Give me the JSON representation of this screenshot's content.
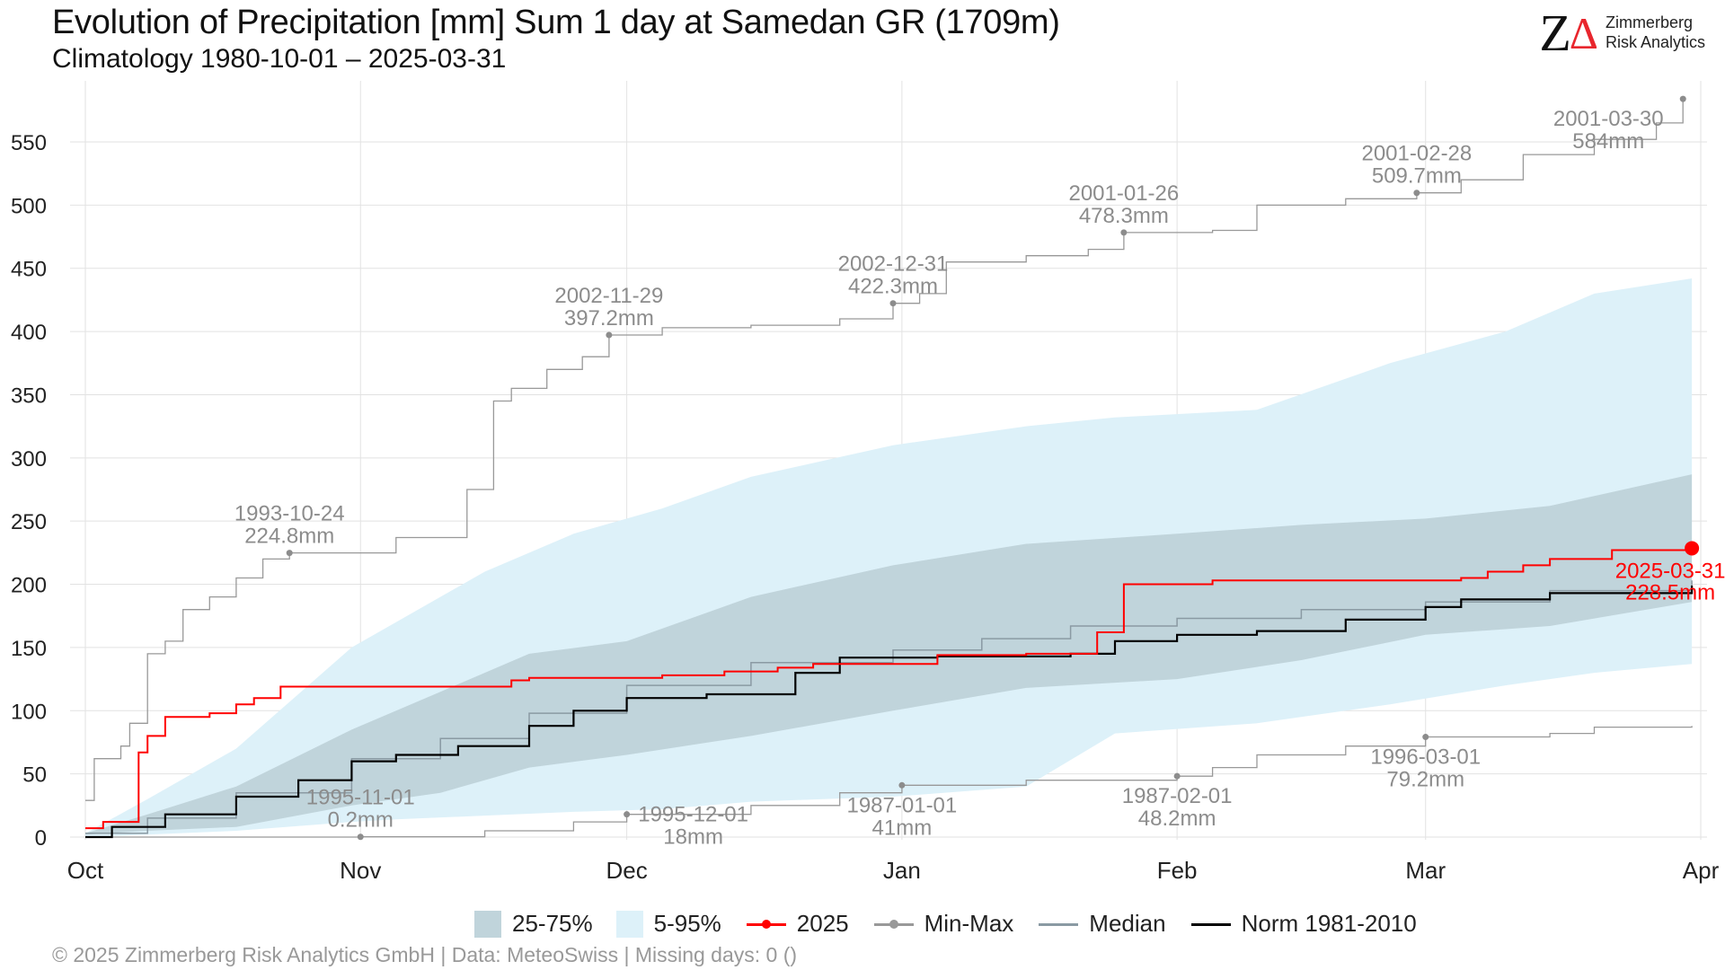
{
  "header": {
    "title": "Evolution of Precipitation [mm] Sum 1 day at Samedan  GR (1709m)",
    "subtitle": "Climatology 1980-10-01 – 2025-03-31"
  },
  "logo": {
    "line1": "Zimmerberg",
    "line2": "Risk Analytics",
    "mark_z": "Z",
    "mark_delta": "Δ"
  },
  "footer": "©  2025 Zimmerberg Risk Analytics GmbH | Data: MeteoSwiss | Missing days: 0 ()",
  "legend": [
    {
      "key": "iqr",
      "label": "25-75%",
      "kind": "fill",
      "color": "#c0d4db"
    },
    {
      "key": "p90",
      "label": "5-95%",
      "kind": "fill",
      "color": "#ddf1f9"
    },
    {
      "key": "current",
      "label": "2025",
      "kind": "line-dot",
      "color": "#ff0000"
    },
    {
      "key": "minmax",
      "label": "Min-Max",
      "kind": "line-dot",
      "color": "#999999"
    },
    {
      "key": "median",
      "label": "Median",
      "kind": "line",
      "color": "#8a9aa3"
    },
    {
      "key": "norm",
      "label": "Norm 1981-2010",
      "kind": "line",
      "color": "#000000"
    }
  ],
  "chart_data": {
    "type": "line",
    "x_axis": {
      "kind": "date",
      "range": [
        "2024-10-01",
        "2025-04-01"
      ],
      "ticks": [
        {
          "date": "2024-10-01",
          "label": "Oct"
        },
        {
          "date": "2024-11-01",
          "label": "Nov"
        },
        {
          "date": "2024-12-01",
          "label": "Dec"
        },
        {
          "date": "2025-01-01",
          "label": "Jan"
        },
        {
          "date": "2025-02-01",
          "label": "Feb"
        },
        {
          "date": "2025-03-01",
          "label": "Mar"
        },
        {
          "date": "2025-04-01",
          "label": "Apr"
        }
      ]
    },
    "y_axis": {
      "range": [
        0,
        590
      ],
      "ticks": [
        0,
        50,
        100,
        150,
        200,
        250,
        300,
        350,
        400,
        450,
        500,
        550
      ]
    },
    "grid": true,
    "legend_position": "bottom",
    "colors": {
      "current": "#ff0000",
      "minmax": "#999999",
      "median": "#8a9aa3",
      "norm": "#000000",
      "iqr": "#c0d4db",
      "p90": "#ddf1f9",
      "annotation": "#8c8c8c"
    },
    "bands": {
      "p5_p95": [
        {
          "date": "2024-10-01",
          "lower": 0,
          "upper": 3
        },
        {
          "date": "2024-10-08",
          "lower": 2,
          "upper": 30
        },
        {
          "date": "2024-10-18",
          "lower": 5,
          "upper": 70
        },
        {
          "date": "2024-10-31",
          "lower": 12,
          "upper": 150
        },
        {
          "date": "2024-11-05",
          "lower": 14,
          "upper": 170
        },
        {
          "date": "2024-11-15",
          "lower": 17,
          "upper": 210
        },
        {
          "date": "2024-11-25",
          "lower": 20,
          "upper": 240
        },
        {
          "date": "2024-12-05",
          "lower": 22,
          "upper": 260
        },
        {
          "date": "2024-12-15",
          "lower": 28,
          "upper": 285
        },
        {
          "date": "2024-12-31",
          "lower": 32,
          "upper": 310
        },
        {
          "date": "2025-01-15",
          "lower": 40,
          "upper": 325
        },
        {
          "date": "2025-01-25",
          "lower": 82,
          "upper": 332
        },
        {
          "date": "2025-02-10",
          "lower": 90,
          "upper": 338
        },
        {
          "date": "2025-02-25",
          "lower": 105,
          "upper": 375
        },
        {
          "date": "2025-03-10",
          "lower": 120,
          "upper": 400
        },
        {
          "date": "2025-03-20",
          "lower": 130,
          "upper": 430
        },
        {
          "date": "2025-03-31",
          "lower": 137,
          "upper": 442
        }
      ],
      "p25_p75": [
        {
          "date": "2024-10-01",
          "lower": 2,
          "upper": 3
        },
        {
          "date": "2024-10-08",
          "lower": 5,
          "upper": 18
        },
        {
          "date": "2024-10-18",
          "lower": 8,
          "upper": 40
        },
        {
          "date": "2024-10-31",
          "lower": 25,
          "upper": 85
        },
        {
          "date": "2024-11-10",
          "lower": 35,
          "upper": 115
        },
        {
          "date": "2024-11-20",
          "lower": 55,
          "upper": 145
        },
        {
          "date": "2024-12-01",
          "lower": 65,
          "upper": 155
        },
        {
          "date": "2024-12-15",
          "lower": 80,
          "upper": 190
        },
        {
          "date": "2024-12-31",
          "lower": 100,
          "upper": 215
        },
        {
          "date": "2025-01-15",
          "lower": 118,
          "upper": 232
        },
        {
          "date": "2025-02-01",
          "lower": 125,
          "upper": 240
        },
        {
          "date": "2025-02-15",
          "lower": 140,
          "upper": 247
        },
        {
          "date": "2025-03-01",
          "lower": 160,
          "upper": 252
        },
        {
          "date": "2025-03-15",
          "lower": 167,
          "upper": 262
        },
        {
          "date": "2025-03-31",
          "lower": 186,
          "upper": 287
        }
      ]
    },
    "series": [
      {
        "key": "max",
        "name": "Min-Max",
        "step": true,
        "points": [
          [
            "2024-10-01",
            29
          ],
          [
            "2024-10-02",
            62
          ],
          [
            "2024-10-05",
            72
          ],
          [
            "2024-10-06",
            90
          ],
          [
            "2024-10-08",
            145
          ],
          [
            "2024-10-10",
            155
          ],
          [
            "2024-10-12",
            180
          ],
          [
            "2024-10-15",
            190
          ],
          [
            "2024-10-18",
            205
          ],
          [
            "2024-10-21",
            220
          ],
          [
            "2024-10-24",
            224.8
          ],
          [
            "2024-11-05",
            237
          ],
          [
            "2024-11-13",
            275
          ],
          [
            "2024-11-16",
            345
          ],
          [
            "2024-11-18",
            355
          ],
          [
            "2024-11-22",
            370
          ],
          [
            "2024-11-26",
            380
          ],
          [
            "2024-11-29",
            397.2
          ],
          [
            "2024-12-05",
            403
          ],
          [
            "2024-12-15",
            405
          ],
          [
            "2024-12-25",
            410
          ],
          [
            "2024-12-31",
            422.3
          ],
          [
            "2025-01-03",
            430
          ],
          [
            "2025-01-06",
            455
          ],
          [
            "2025-01-15",
            460
          ],
          [
            "2025-01-22",
            465
          ],
          [
            "2025-01-26",
            478.3
          ],
          [
            "2025-02-05",
            480
          ],
          [
            "2025-02-10",
            500
          ],
          [
            "2025-02-20",
            505
          ],
          [
            "2025-02-28",
            509.7
          ],
          [
            "2025-03-05",
            520
          ],
          [
            "2025-03-12",
            540
          ],
          [
            "2025-03-20",
            552
          ],
          [
            "2025-03-27",
            565
          ],
          [
            "2025-03-30",
            584
          ]
        ]
      },
      {
        "key": "min",
        "name": "Min-Max",
        "step": true,
        "points": [
          [
            "2024-10-01",
            0
          ],
          [
            "2024-11-01",
            0.2
          ],
          [
            "2024-11-15",
            5
          ],
          [
            "2024-11-25",
            12
          ],
          [
            "2024-12-01",
            18
          ],
          [
            "2024-12-15",
            25
          ],
          [
            "2024-12-25",
            35
          ],
          [
            "2025-01-01",
            41
          ],
          [
            "2025-01-15",
            45
          ],
          [
            "2025-02-01",
            48.2
          ],
          [
            "2025-02-05",
            55
          ],
          [
            "2025-02-10",
            65
          ],
          [
            "2025-02-20",
            72
          ],
          [
            "2025-03-01",
            79.2
          ],
          [
            "2025-03-15",
            82
          ],
          [
            "2025-03-20",
            87
          ],
          [
            "2025-03-31",
            88
          ]
        ]
      },
      {
        "key": "median",
        "name": "Median",
        "step": true,
        "points": [
          [
            "2024-10-01",
            3
          ],
          [
            "2024-10-08",
            15
          ],
          [
            "2024-10-18",
            35
          ],
          [
            "2024-10-31",
            62
          ],
          [
            "2024-11-10",
            78
          ],
          [
            "2024-11-20",
            98
          ],
          [
            "2024-12-01",
            120
          ],
          [
            "2024-12-15",
            138
          ],
          [
            "2024-12-31",
            148
          ],
          [
            "2025-01-10",
            157
          ],
          [
            "2025-01-20",
            167
          ],
          [
            "2025-02-01",
            173
          ],
          [
            "2025-02-15",
            180
          ],
          [
            "2025-03-01",
            186
          ],
          [
            "2025-03-15",
            195
          ],
          [
            "2025-03-31",
            203
          ]
        ]
      },
      {
        "key": "norm",
        "name": "Norm 1981-2010",
        "step": true,
        "points": [
          [
            "2024-10-01",
            0
          ],
          [
            "2024-10-04",
            8
          ],
          [
            "2024-10-10",
            18
          ],
          [
            "2024-10-18",
            32
          ],
          [
            "2024-10-25",
            45
          ],
          [
            "2024-10-31",
            60
          ],
          [
            "2024-11-05",
            65
          ],
          [
            "2024-11-12",
            72
          ],
          [
            "2024-11-20",
            88
          ],
          [
            "2024-11-25",
            100
          ],
          [
            "2024-12-01",
            110
          ],
          [
            "2024-12-10",
            113
          ],
          [
            "2024-12-20",
            130
          ],
          [
            "2024-12-25",
            142
          ],
          [
            "2025-01-05",
            143
          ],
          [
            "2025-01-20",
            145
          ],
          [
            "2025-01-25",
            155
          ],
          [
            "2025-02-01",
            160
          ],
          [
            "2025-02-10",
            163
          ],
          [
            "2025-02-20",
            172
          ],
          [
            "2025-03-01",
            182
          ],
          [
            "2025-03-05",
            188
          ],
          [
            "2025-03-15",
            193
          ],
          [
            "2025-03-31",
            199
          ]
        ]
      },
      {
        "key": "current",
        "name": "2025",
        "step": true,
        "points": [
          [
            "2024-10-01",
            7
          ],
          [
            "2024-10-03",
            12
          ],
          [
            "2024-10-07",
            67
          ],
          [
            "2024-10-08",
            80
          ],
          [
            "2024-10-10",
            95
          ],
          [
            "2024-10-15",
            98
          ],
          [
            "2024-10-18",
            105
          ],
          [
            "2024-10-20",
            110
          ],
          [
            "2024-10-23",
            119
          ],
          [
            "2024-11-18",
            124
          ],
          [
            "2024-11-20",
            126
          ],
          [
            "2024-12-05",
            128
          ],
          [
            "2024-12-12",
            131
          ],
          [
            "2024-12-18",
            134
          ],
          [
            "2024-12-22",
            137
          ],
          [
            "2025-01-05",
            144
          ],
          [
            "2025-01-15",
            145
          ],
          [
            "2025-01-23",
            162
          ],
          [
            "2025-01-26",
            200
          ],
          [
            "2025-02-05",
            203
          ],
          [
            "2025-03-05",
            205
          ],
          [
            "2025-03-08",
            210
          ],
          [
            "2025-03-12",
            215
          ],
          [
            "2025-03-15",
            220
          ],
          [
            "2025-03-22",
            227
          ],
          [
            "2025-03-31",
            228.5
          ]
        ]
      }
    ],
    "annotations": [
      {
        "series": "max",
        "date": "2024-10-24",
        "value": 224.8,
        "label_date": "1993-10-24",
        "label_value": "224.8mm",
        "pos": "above"
      },
      {
        "series": "max",
        "date": "2024-11-29",
        "value": 397.2,
        "label_date": "2002-11-29",
        "label_value": "397.2mm",
        "pos": "above"
      },
      {
        "series": "max",
        "date": "2024-12-31",
        "value": 422.3,
        "label_date": "2002-12-31",
        "label_value": "422.3mm",
        "pos": "above"
      },
      {
        "series": "max",
        "date": "2025-01-26",
        "value": 478.3,
        "label_date": "2001-01-26",
        "label_value": "478.3mm",
        "pos": "above"
      },
      {
        "series": "max",
        "date": "2025-02-28",
        "value": 509.7,
        "label_date": "2001-02-28",
        "label_value": "509.7mm",
        "pos": "above"
      },
      {
        "series": "max",
        "date": "2025-03-30",
        "value": 584,
        "label_date": "2001-03-30",
        "label_value": "584mm",
        "pos": "below-left"
      },
      {
        "series": "min",
        "date": "2024-11-01",
        "value": 0.2,
        "label_date": "1995-11-01",
        "label_value": "0.2mm",
        "pos": "above"
      },
      {
        "series": "min",
        "date": "2024-12-01",
        "value": 18,
        "label_date": "1995-12-01",
        "label_value": "18mm",
        "pos": "right"
      },
      {
        "series": "min",
        "date": "2025-01-01",
        "value": 41,
        "label_date": "1987-01-01",
        "label_value": "41mm",
        "pos": "below"
      },
      {
        "series": "min",
        "date": "2025-02-01",
        "value": 48.2,
        "label_date": "1987-02-01",
        "label_value": "48.2mm",
        "pos": "below"
      },
      {
        "series": "min",
        "date": "2025-03-01",
        "value": 79.2,
        "label_date": "1996-03-01",
        "label_value": "79.2mm",
        "pos": "below"
      },
      {
        "series": "current",
        "date": "2025-03-31",
        "value": 228.5,
        "label_date": "2025-03-31",
        "label_value": "228.5mm",
        "pos": "below",
        "highlight": true
      }
    ]
  }
}
